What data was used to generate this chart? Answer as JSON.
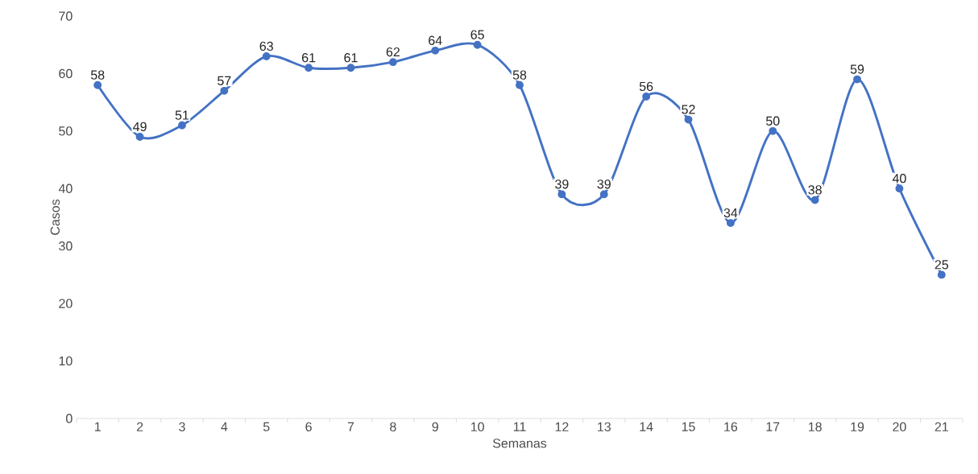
{
  "chart_data": {
    "type": "line",
    "xlabel": "Semanas",
    "ylabel": "Casos",
    "categories": [
      "1",
      "2",
      "3",
      "4",
      "5",
      "6",
      "7",
      "8",
      "9",
      "10",
      "11",
      "12",
      "13",
      "14",
      "15",
      "16",
      "17",
      "18",
      "19",
      "20",
      "21"
    ],
    "series": [
      {
        "color": "#4472c4",
        "values": [
          58,
          49,
          51,
          57,
          63,
          61,
          61,
          62,
          64,
          65,
          58,
          39,
          39,
          56,
          52,
          34,
          50,
          38,
          59,
          40,
          25
        ]
      }
    ],
    "ylim": [
      0,
      70
    ],
    "yticks": [
      0,
      10,
      20,
      30,
      40,
      50,
      60,
      70
    ],
    "marker": "circle",
    "line_style": "solid",
    "data_labels": true
  }
}
